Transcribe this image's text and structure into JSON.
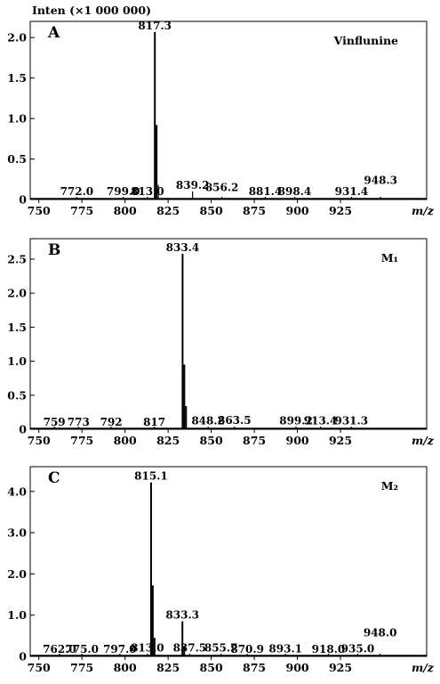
{
  "figure": {
    "intensity_label": "Inten (×1 000 000)",
    "x_axis_label": "m/z"
  },
  "chart_data": [
    {
      "type": "bar",
      "panel": "A",
      "compound": "Vinflunine",
      "xlim": [
        745,
        975
      ],
      "ylim": [
        0,
        2.2
      ],
      "x_ticks": [
        750,
        775,
        800,
        825,
        850,
        875,
        900,
        925
      ],
      "y_ticks": [
        0,
        0.5,
        1.0,
        1.5,
        2.0
      ],
      "y_tick_labels": [
        "0",
        "0.5",
        "1.0",
        "1.5",
        "2.0"
      ],
      "peaks": [
        {
          "mz": 772.0,
          "intensity": 0.02,
          "label": "772.0",
          "label_y": 0.02
        },
        {
          "mz": 799.0,
          "intensity": 0.02,
          "label": "799.0",
          "label_y": 0.02
        },
        {
          "mz": 813.0,
          "intensity": 0.03,
          "label": "813.0",
          "label_y": 0.02
        },
        {
          "mz": 817.3,
          "intensity": 2.07,
          "label": "817.3"
        },
        {
          "mz": 818.3,
          "intensity": 0.92,
          "label": ""
        },
        {
          "mz": 819.3,
          "intensity": 0.18,
          "label": ""
        },
        {
          "mz": 839.2,
          "intensity": 0.1,
          "label": "839.2"
        },
        {
          "mz": 856.2,
          "intensity": 0.03,
          "label": "856.2",
          "label_y": 0.07
        },
        {
          "mz": 881.4,
          "intensity": 0.02,
          "label": "881.4",
          "label_y": 0.02
        },
        {
          "mz": 898.4,
          "intensity": 0.02,
          "label": "898.4",
          "label_y": 0.02
        },
        {
          "mz": 931.4,
          "intensity": 0.02,
          "label": "931.4",
          "label_y": 0.02
        },
        {
          "mz": 948.3,
          "intensity": 0.02,
          "label": "948.3",
          "label_y": 0.16
        }
      ]
    },
    {
      "type": "bar",
      "panel": "B",
      "compound": "M₁",
      "xlim": [
        745,
        975
      ],
      "ylim": [
        0,
        2.8
      ],
      "x_ticks": [
        750,
        775,
        800,
        825,
        850,
        875,
        900,
        925
      ],
      "y_ticks": [
        0,
        0.5,
        1.0,
        1.5,
        2.0,
        2.5
      ],
      "y_tick_labels": [
        "0",
        "0.5",
        "1.0",
        "1.5",
        "2.0",
        "2.5"
      ],
      "peaks": [
        {
          "mz": 759,
          "intensity": 0.01,
          "label": "759"
        },
        {
          "mz": 773,
          "intensity": 0.01,
          "label": "773"
        },
        {
          "mz": 792,
          "intensity": 0.01,
          "label": "792"
        },
        {
          "mz": 817,
          "intensity": 0.01,
          "label": "817"
        },
        {
          "mz": 833.4,
          "intensity": 2.58,
          "label": "833.4"
        },
        {
          "mz": 834.4,
          "intensity": 0.95,
          "label": ""
        },
        {
          "mz": 835.4,
          "intensity": 0.34,
          "label": ""
        },
        {
          "mz": 848.2,
          "intensity": 0.03,
          "label": "848.2"
        },
        {
          "mz": 863.5,
          "intensity": 0.04,
          "label": "863.5"
        },
        {
          "mz": 899.2,
          "intensity": 0.03,
          "label": "899.2"
        },
        {
          "mz": 913.4,
          "intensity": 0.03,
          "label": "913.4"
        },
        {
          "mz": 931.3,
          "intensity": 0.03,
          "label": "931.3"
        }
      ]
    },
    {
      "type": "bar",
      "panel": "C",
      "compound": "M₂",
      "xlim": [
        745,
        975
      ],
      "ylim": [
        0,
        4.6
      ],
      "x_ticks": [
        750,
        775,
        800,
        825,
        850,
        875,
        900,
        925
      ],
      "y_ticks": [
        0,
        1.0,
        2.0,
        3.0,
        4.0
      ],
      "y_tick_labels": [
        "0",
        "1.0",
        "2.0",
        "3.0",
        "4.0"
      ],
      "peaks": [
        {
          "mz": 762.0,
          "intensity": 0.02,
          "label": "762.0"
        },
        {
          "mz": 775.0,
          "intensity": 0.02,
          "label": "775.0"
        },
        {
          "mz": 797.0,
          "intensity": 0.02,
          "label": "797.0"
        },
        {
          "mz": 813.0,
          "intensity": 0.05,
          "label": "813.0"
        },
        {
          "mz": 815.1,
          "intensity": 4.22,
          "label": "815.1"
        },
        {
          "mz": 816.1,
          "intensity": 1.72,
          "label": ""
        },
        {
          "mz": 817.1,
          "intensity": 0.45,
          "label": ""
        },
        {
          "mz": 833.3,
          "intensity": 0.85,
          "label": "833.3"
        },
        {
          "mz": 834.3,
          "intensity": 0.25,
          "label": ""
        },
        {
          "mz": 837.5,
          "intensity": 0.05,
          "label": "837.5"
        },
        {
          "mz": 855.7,
          "intensity": 0.05,
          "label": "855.7"
        },
        {
          "mz": 870.9,
          "intensity": 0.02,
          "label": "870.9"
        },
        {
          "mz": 893.1,
          "intensity": 0.03,
          "label": "893.1"
        },
        {
          "mz": 918.0,
          "intensity": 0.02,
          "label": "918.0"
        },
        {
          "mz": 935.0,
          "intensity": 0.03,
          "label": "935.0"
        },
        {
          "mz": 948.0,
          "intensity": 0.05,
          "label": "948.0",
          "label_y": 0.42
        }
      ]
    }
  ]
}
